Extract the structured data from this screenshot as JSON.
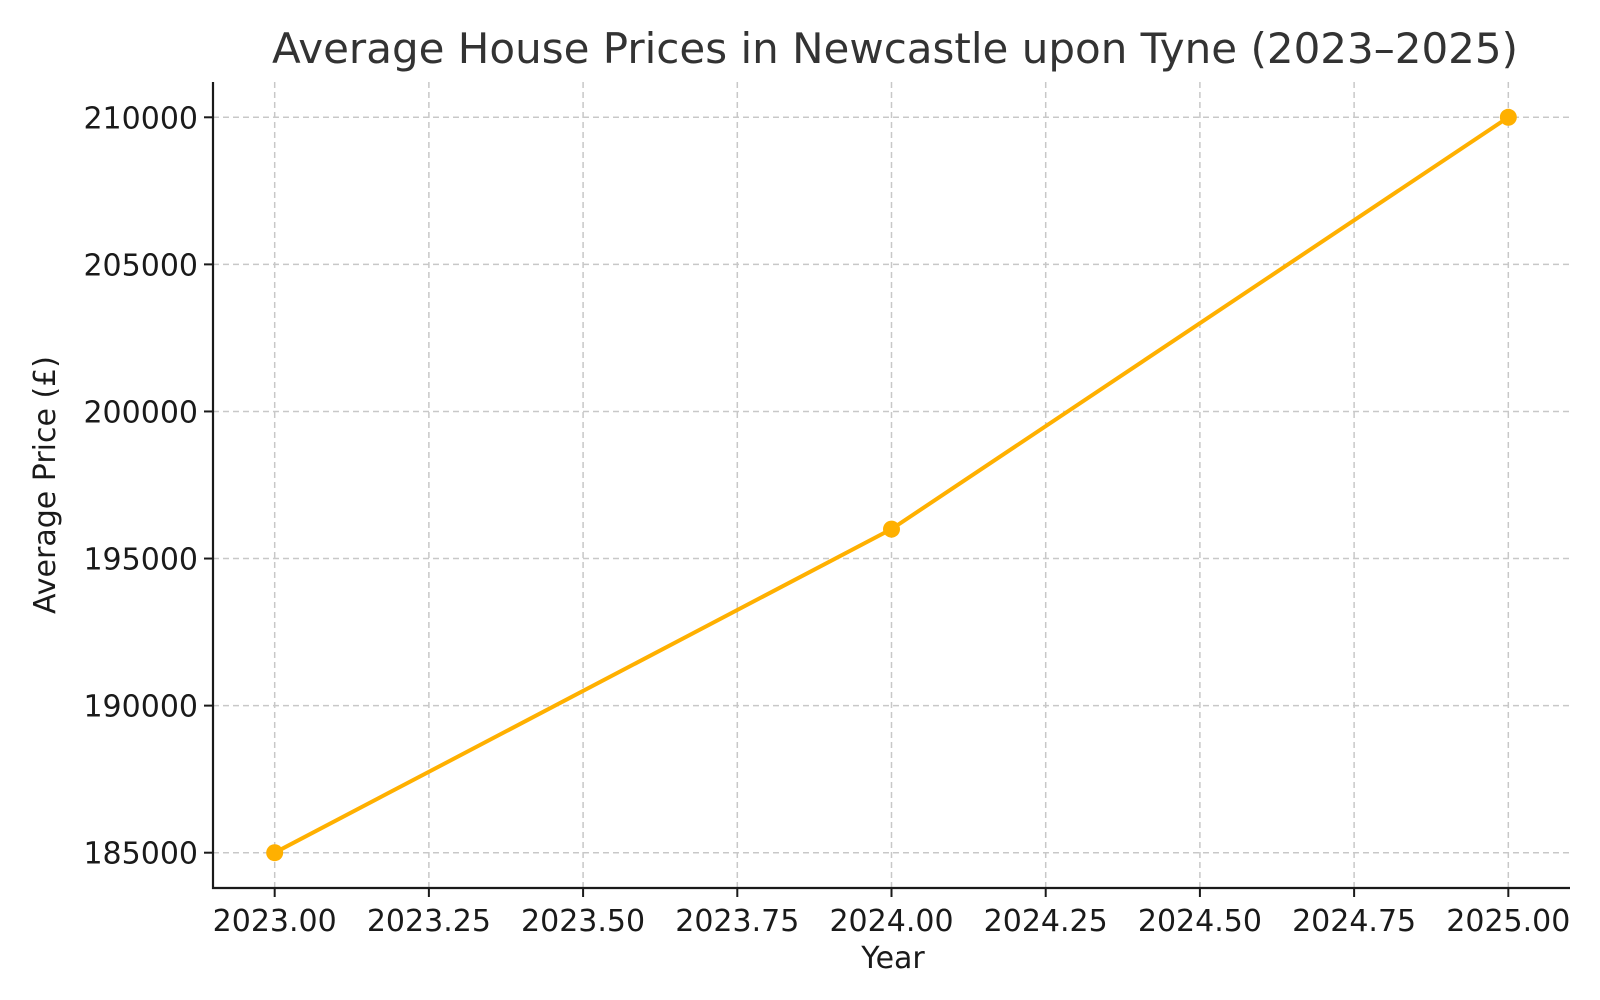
{
  "chart_data": {
    "type": "line",
    "title": "Average House Prices in Newcastle upon Tyne (2023–2025)",
    "xlabel": "Year",
    "ylabel": "Average Price (£)",
    "xlim": [
      2022.9,
      2025.1
    ],
    "ylim": [
      183800,
      211200
    ],
    "x_ticks": [
      2023.0,
      2023.25,
      2023.5,
      2023.75,
      2024.0,
      2024.25,
      2024.5,
      2024.75,
      2025.0
    ],
    "x_tick_labels": [
      "2023.00",
      "2023.25",
      "2023.50",
      "2023.75",
      "2024.00",
      "2024.25",
      "2024.50",
      "2024.75",
      "2025.00"
    ],
    "y_ticks": [
      185000,
      190000,
      195000,
      200000,
      205000,
      210000
    ],
    "y_tick_labels": [
      "185000",
      "190000",
      "195000",
      "200000",
      "205000",
      "210000"
    ],
    "grid": true,
    "series": [
      {
        "x": [
          2023,
          2024,
          2025
        ],
        "values": [
          185000,
          196000,
          210000
        ],
        "color": "#FFB000",
        "marker": "circle"
      }
    ]
  }
}
